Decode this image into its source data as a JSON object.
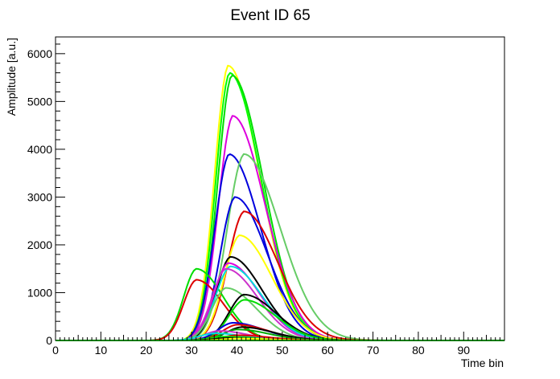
{
  "chart_data": {
    "type": "line",
    "title": "Event ID 65",
    "xlabel": "Time bin",
    "ylabel": "Amplitude [a.u.]",
    "xlim": [
      0,
      99
    ],
    "ylim": [
      0,
      6350
    ],
    "x_ticks": [
      0,
      10,
      20,
      30,
      40,
      50,
      60,
      70,
      80,
      90
    ],
    "y_ticks": [
      0,
      1000,
      2000,
      3000,
      4000,
      5000,
      6000
    ],
    "grid": false,
    "legend": "none",
    "series": [
      {
        "color": "#ffff00",
        "peak_x": 38,
        "peak_y": 5750,
        "rise": 3.2,
        "fall": 7.0,
        "onset": 28
      },
      {
        "color": "#00ff00",
        "peak_x": 38.3,
        "peak_y": 5600,
        "rise": 3.2,
        "fall": 7.0,
        "onset": 28
      },
      {
        "color": "#00dd00",
        "peak_x": 38.8,
        "peak_y": 5550,
        "rise": 3.3,
        "fall": 7.0,
        "onset": 29
      },
      {
        "color": "#dd00dd",
        "peak_x": 39,
        "peak_y": 4700,
        "rise": 3.4,
        "fall": 7.2,
        "onset": 29
      },
      {
        "color": "#0000dd",
        "peak_x": 38.2,
        "peak_y": 3900,
        "rise": 3.4,
        "fall": 7.0,
        "onset": 29
      },
      {
        "color": "#66cc66",
        "peak_x": 41.5,
        "peak_y": 3900,
        "rise": 4.0,
        "fall": 8.0,
        "onset": 30
      },
      {
        "color": "#0000dd",
        "peak_x": 39.5,
        "peak_y": 3000,
        "rise": 3.5,
        "fall": 7.2,
        "onset": 29
      },
      {
        "color": "#dd0000",
        "peak_x": 41.5,
        "peak_y": 2700,
        "rise": 3.8,
        "fall": 7.5,
        "onset": 30
      },
      {
        "color": "#ffff00",
        "peak_x": 40.5,
        "peak_y": 2200,
        "rise": 3.6,
        "fall": 7.2,
        "onset": 30
      },
      {
        "color": "#00dd00",
        "peak_x": 31,
        "peak_y": 1500,
        "rise": 3.0,
        "fall": 6.0,
        "onset": 21
      },
      {
        "color": "#dd0000",
        "peak_x": 31,
        "peak_y": 1270,
        "rise": 3.0,
        "fall": 6.0,
        "onset": 21
      },
      {
        "color": "#000000",
        "peak_x": 38.5,
        "peak_y": 1750,
        "rise": 3.3,
        "fall": 7.0,
        "onset": 29
      },
      {
        "color": "#dd00dd",
        "peak_x": 38,
        "peak_y": 1620,
        "rise": 3.3,
        "fall": 7.0,
        "onset": 28
      },
      {
        "color": "#00dddd",
        "peak_x": 38.5,
        "peak_y": 1550,
        "rise": 3.5,
        "fall": 7.0,
        "onset": 28
      },
      {
        "color": "#cc33cc",
        "peak_x": 37.5,
        "peak_y": 1500,
        "rise": 3.3,
        "fall": 7.0,
        "onset": 28
      },
      {
        "color": "#66cc66",
        "peak_x": 37.5,
        "peak_y": 1100,
        "rise": 3.3,
        "fall": 6.8,
        "onset": 28
      },
      {
        "color": "#000000",
        "peak_x": 41.5,
        "peak_y": 960,
        "rise": 3.6,
        "fall": 7.0,
        "onset": 31
      },
      {
        "color": "#00dd00",
        "peak_x": 41.5,
        "peak_y": 850,
        "rise": 3.6,
        "fall": 7.0,
        "onset": 31
      },
      {
        "color": "#0000dd",
        "peak_x": 39,
        "peak_y": 370,
        "rise": 3.5,
        "fall": 7.0,
        "onset": 29
      },
      {
        "color": "#dd0000",
        "peak_x": 40,
        "peak_y": 330,
        "rise": 3.5,
        "fall": 7.0,
        "onset": 30
      },
      {
        "color": "#000000",
        "peak_x": 41,
        "peak_y": 280,
        "rise": 3.6,
        "fall": 7.0,
        "onset": 30
      },
      {
        "color": "#00aa00",
        "peak_x": 40,
        "peak_y": 230,
        "rise": 3.5,
        "fall": 7.0,
        "onset": 30
      },
      {
        "color": "#cc33cc",
        "peak_x": 36,
        "peak_y": 200,
        "rise": 3.5,
        "fall": 6.5,
        "onset": 26
      },
      {
        "color": "#00dddd",
        "peak_x": 35,
        "peak_y": 150,
        "rise": 3.5,
        "fall": 6.5,
        "onset": 26
      },
      {
        "color": "#dd0000",
        "peak_x": 40,
        "peak_y": 110,
        "rise": 3.5,
        "fall": 7.0,
        "onset": 30
      },
      {
        "color": "#00dd00",
        "peak_x": 37,
        "peak_y": 80,
        "rise": 3.5,
        "fall": 7.0,
        "onset": 28
      },
      {
        "color": "#000000",
        "peak_x": 38,
        "peak_y": 50,
        "rise": 3.5,
        "fall": 7.0,
        "onset": 28
      },
      {
        "color": "#ffff00",
        "peak_x": 40,
        "peak_y": 40,
        "rise": 3.5,
        "fall": 7.0,
        "onset": 30
      },
      {
        "color": "#00ff00",
        "peak_x": 50,
        "peak_y": 0,
        "rise": 3.5,
        "fall": 7.0,
        "onset": 0
      }
    ]
  }
}
